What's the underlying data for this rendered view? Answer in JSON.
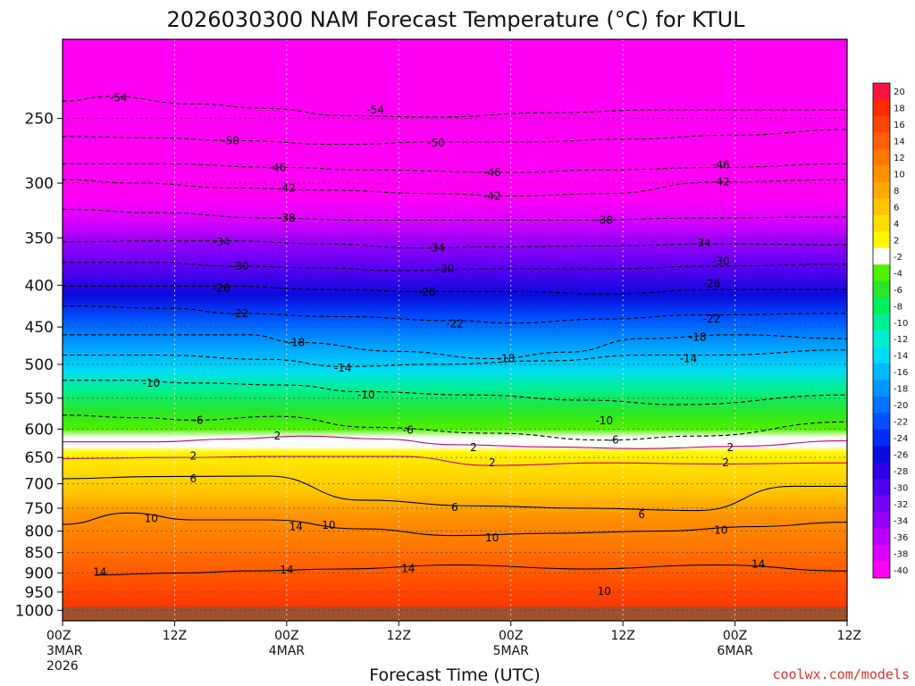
{
  "chart_data": {
    "type": "heatmap",
    "title": "2026030300 NAM Forecast Temperature (°C) for KTUL",
    "xlabel": "Forecast Time (UTC)",
    "ylabel": "",
    "y_scale": "pressure (inverted, logarithmic)",
    "x_ticks": [
      {
        "hour": 0,
        "lines": [
          "00Z",
          "3MAR",
          "2026"
        ]
      },
      {
        "hour": 12,
        "lines": [
          "12Z"
        ]
      },
      {
        "hour": 24,
        "lines": [
          "00Z",
          "4MAR"
        ]
      },
      {
        "hour": 36,
        "lines": [
          "12Z"
        ]
      },
      {
        "hour": 48,
        "lines": [
          "00Z",
          "5MAR"
        ]
      },
      {
        "hour": 60,
        "lines": [
          "12Z"
        ]
      },
      {
        "hour": 72,
        "lines": [
          "00Z",
          "6MAR"
        ]
      },
      {
        "hour": 84,
        "lines": [
          "12Z"
        ]
      }
    ],
    "y_ticks": [
      "250",
      "300",
      "350",
      "400",
      "450",
      "500",
      "550",
      "600",
      "650",
      "700",
      "750",
      "800",
      "850",
      "900",
      "950",
      "1000"
    ],
    "y_tick_values": [
      250,
      300,
      350,
      400,
      450,
      500,
      550,
      600,
      650,
      700,
      750,
      800,
      850,
      900,
      950,
      1000
    ],
    "xlim": [
      0,
      84
    ],
    "ylim": [
      200,
      1030
    ],
    "grid": true,
    "ground_pressure": 990,
    "colorbar": {
      "placement": "right",
      "labels": [
        "20",
        "18",
        "16",
        "14",
        "12",
        "10",
        "8",
        "6",
        "4",
        "2",
        "-2",
        "-4",
        "-6",
        "-8",
        "-10",
        "-12",
        "-14",
        "-16",
        "-18",
        "-20",
        "-22",
        "-24",
        "-26",
        "-28",
        "-30",
        "-32",
        "-34",
        "-36",
        "-38",
        "-40"
      ],
      "colors": [
        "#ff1440",
        "#ff2a00",
        "#ff4600",
        "#ff5f00",
        "#ff7800",
        "#ff9200",
        "#ffaa00",
        "#ffc400",
        "#ffdd00",
        "#fff600",
        "#ffffff",
        "#50f000",
        "#28e628",
        "#00ef5a",
        "#00ef96",
        "#00efd2",
        "#00dcf5",
        "#00b9ff",
        "#0096ff",
        "#0073ff",
        "#0050ff",
        "#002df5",
        "#0a0adc",
        "#2d00e6",
        "#5000f0",
        "#7300f5",
        "#9600fa",
        "#b900ff",
        "#dc00ff",
        "#ff00f5"
      ]
    },
    "isotherms": [
      {
        "t": "14",
        "p": [
          [
            3.5,
            905
          ],
          [
            13,
            900
          ],
          [
            20,
            895
          ],
          [
            30,
            890
          ],
          [
            42,
            880
          ],
          [
            56,
            890
          ],
          [
            70,
            880
          ],
          [
            84,
            895
          ]
        ]
      },
      {
        "t": "10",
        "p": [
          [
            0,
            785
          ],
          [
            7,
            760
          ],
          [
            14,
            775
          ],
          [
            22,
            775
          ],
          [
            32,
            795
          ],
          [
            42,
            810
          ],
          [
            52,
            805
          ],
          [
            64,
            800
          ],
          [
            74,
            790
          ],
          [
            84,
            780
          ]
        ]
      },
      {
        "t": "6",
        "p": [
          [
            0,
            690
          ],
          [
            10,
            686
          ],
          [
            22,
            685
          ],
          [
            32,
            733
          ],
          [
            44,
            745
          ],
          [
            56,
            750
          ],
          [
            68,
            755
          ],
          [
            78,
            705
          ],
          [
            84,
            705
          ]
        ]
      },
      {
        "t": "2",
        "p": [
          [
            0,
            652
          ],
          [
            12,
            650
          ],
          [
            24,
            648
          ],
          [
            36,
            648
          ],
          [
            46,
            665
          ],
          [
            58,
            660
          ],
          [
            70,
            662
          ],
          [
            84,
            660
          ]
        ]
      },
      {
        "t": "2",
        "p": [
          [
            0,
            622
          ],
          [
            10,
            622
          ],
          [
            18,
            617
          ],
          [
            26,
            612
          ],
          [
            34,
            617
          ],
          [
            42,
            627
          ],
          [
            52,
            631
          ],
          [
            62,
            634
          ],
          [
            72,
            630
          ],
          [
            84,
            620
          ]
        ]
      },
      {
        "t": "-6",
        "p": [
          [
            0,
            577
          ],
          [
            8,
            581
          ],
          [
            14,
            585
          ],
          [
            23,
            579
          ],
          [
            33,
            597
          ],
          [
            46,
            607
          ],
          [
            58,
            619
          ],
          [
            68,
            612
          ],
          [
            84,
            588
          ]
        ]
      },
      {
        "t": "-10",
        "p": [
          [
            0,
            523
          ],
          [
            7,
            523
          ],
          [
            14,
            527
          ],
          [
            24,
            530
          ],
          [
            32,
            540
          ],
          [
            44,
            545
          ],
          [
            56,
            553
          ],
          [
            66,
            560
          ],
          [
            84,
            545
          ]
        ]
      },
      {
        "t": "-14",
        "p": [
          [
            0,
            487
          ],
          [
            10,
            487
          ],
          [
            22,
            493
          ],
          [
            30,
            503
          ],
          [
            40,
            500
          ],
          [
            52,
            495
          ],
          [
            62,
            487
          ],
          [
            70,
            487
          ],
          [
            84,
            480
          ]
        ]
      },
      {
        "t": "-18",
        "p": [
          [
            0,
            460
          ],
          [
            10,
            460
          ],
          [
            20,
            460
          ],
          [
            25,
            470
          ],
          [
            36,
            482
          ],
          [
            46,
            492
          ],
          [
            54,
            483
          ],
          [
            62,
            465
          ],
          [
            72,
            460
          ],
          [
            84,
            465
          ]
        ]
      },
      {
        "t": "-22",
        "p": [
          [
            0,
            424
          ],
          [
            12,
            427
          ],
          [
            18,
            433
          ],
          [
            30,
            437
          ],
          [
            42,
            442
          ],
          [
            48,
            445
          ],
          [
            58,
            440
          ],
          [
            68,
            435
          ],
          [
            84,
            433
          ]
        ]
      },
      {
        "t": "-26",
        "p": [
          [
            0,
            401
          ],
          [
            10,
            401
          ],
          [
            18,
            401
          ],
          [
            28,
            405
          ],
          [
            38,
            407
          ],
          [
            48,
            407
          ],
          [
            58,
            410
          ],
          [
            70,
            405
          ],
          [
            84,
            405
          ]
        ]
      },
      {
        "t": "-30",
        "p": [
          [
            0,
            375
          ],
          [
            10,
            375
          ],
          [
            18,
            379
          ],
          [
            28,
            381
          ],
          [
            36,
            384
          ],
          [
            46,
            382
          ],
          [
            58,
            382
          ],
          [
            70,
            379
          ],
          [
            84,
            377
          ]
        ]
      },
      {
        "t": "-34",
        "p": [
          [
            0,
            354
          ],
          [
            10,
            353
          ],
          [
            18,
            353
          ],
          [
            28,
            356
          ],
          [
            38,
            360
          ],
          [
            46,
            359
          ],
          [
            58,
            358
          ],
          [
            70,
            356
          ],
          [
            84,
            357
          ]
        ]
      },
      {
        "t": "-38",
        "p": [
          [
            0,
            323
          ],
          [
            10,
            326
          ],
          [
            22,
            331
          ],
          [
            32,
            333
          ],
          [
            44,
            333
          ],
          [
            56,
            333
          ],
          [
            68,
            331
          ],
          [
            84,
            330
          ]
        ]
      },
      {
        "t": "-42",
        "p": [
          [
            0,
            297
          ],
          [
            8,
            300
          ],
          [
            18,
            304
          ],
          [
            28,
            306
          ],
          [
            40,
            309
          ],
          [
            48,
            311
          ],
          [
            58,
            309
          ],
          [
            70,
            299
          ],
          [
            84,
            297
          ]
        ]
      },
      {
        "t": "-46",
        "p": [
          [
            0,
            284
          ],
          [
            10,
            284
          ],
          [
            24,
            287
          ],
          [
            32,
            289
          ],
          [
            48,
            291
          ],
          [
            58,
            289
          ],
          [
            70,
            287
          ],
          [
            84,
            284
          ]
        ]
      },
      {
        "t": "-50",
        "p": [
          [
            0,
            263
          ],
          [
            10,
            264
          ],
          [
            18,
            266
          ],
          [
            30,
            269
          ],
          [
            40,
            267
          ],
          [
            50,
            267
          ],
          [
            60,
            265
          ],
          [
            72,
            262
          ],
          [
            84,
            258
          ]
        ]
      },
      {
        "t": "-54",
        "p": [
          [
            0,
            238
          ],
          [
            5,
            235
          ],
          [
            14,
            240
          ],
          [
            22,
            243
          ],
          [
            30,
            248
          ],
          [
            40,
            249
          ],
          [
            52,
            246
          ],
          [
            64,
            244
          ],
          [
            84,
            244
          ]
        ]
      }
    ],
    "contour_labels": [
      {
        "t": "14",
        "h": 4,
        "p": 898
      },
      {
        "t": "14",
        "h": 25,
        "p": 790
      },
      {
        "t": "14",
        "h": 24,
        "p": 892
      },
      {
        "t": "14",
        "h": 37,
        "p": 889
      },
      {
        "t": "14",
        "h": 74.5,
        "p": 878
      },
      {
        "t": "10",
        "h": 9.5,
        "p": 772
      },
      {
        "t": "10",
        "h": 28.5,
        "p": 787
      },
      {
        "t": "10",
        "h": 46,
        "p": 815
      },
      {
        "t": "10",
        "h": 58,
        "p": 948
      },
      {
        "t": "10",
        "h": 70.5,
        "p": 798
      },
      {
        "t": "6",
        "h": 14,
        "p": 690
      },
      {
        "t": "6",
        "h": 42,
        "p": 748
      },
      {
        "t": "6",
        "h": 62,
        "p": 763
      },
      {
        "t": "2",
        "h": 14,
        "p": 647
      },
      {
        "t": "2",
        "h": 23,
        "p": 612
      },
      {
        "t": "2",
        "h": 44,
        "p": 632
      },
      {
        "t": "2",
        "h": 46,
        "p": 660
      },
      {
        "t": "2",
        "h": 71.5,
        "p": 632
      },
      {
        "t": "2",
        "h": 71,
        "p": 660
      },
      {
        "t": "-6",
        "h": 14.5,
        "p": 585
      },
      {
        "t": "-6",
        "h": 37,
        "p": 602
      },
      {
        "t": "-6",
        "h": 59,
        "p": 619
      },
      {
        "t": "-10",
        "h": 9.5,
        "p": 527
      },
      {
        "t": "-10",
        "h": 32.5,
        "p": 545
      },
      {
        "t": "-10",
        "h": 58,
        "p": 586
      },
      {
        "t": "-14",
        "h": 30,
        "p": 505
      },
      {
        "t": "-14",
        "h": 67,
        "p": 492
      },
      {
        "t": "-18",
        "h": 25,
        "p": 470
      },
      {
        "t": "-18",
        "h": 47.5,
        "p": 492
      },
      {
        "t": "-18",
        "h": 68,
        "p": 463
      },
      {
        "t": "-22",
        "h": 19,
        "p": 433
      },
      {
        "t": "-22",
        "h": 42,
        "p": 446
      },
      {
        "t": "-22",
        "h": 69.5,
        "p": 440
      },
      {
        "t": "-26",
        "h": 17,
        "p": 403
      },
      {
        "t": "-26",
        "h": 39,
        "p": 408
      },
      {
        "t": "-26",
        "h": 69.5,
        "p": 398
      },
      {
        "t": "-30",
        "h": 19,
        "p": 379
      },
      {
        "t": "-30",
        "h": 41,
        "p": 382
      },
      {
        "t": "-30",
        "h": 70.5,
        "p": 374
      },
      {
        "t": "-34",
        "h": 17,
        "p": 354
      },
      {
        "t": "-34",
        "h": 40,
        "p": 360
      },
      {
        "t": "-34",
        "h": 68.5,
        "p": 355
      },
      {
        "t": "-38",
        "h": 24,
        "p": 331
      },
      {
        "t": "-38",
        "h": 58,
        "p": 333
      },
      {
        "t": "-42",
        "h": 24,
        "p": 304
      },
      {
        "t": "-42",
        "h": 46,
        "p": 311
      },
      {
        "t": "-42",
        "h": 70.5,
        "p": 299
      },
      {
        "t": "-46",
        "h": 23,
        "p": 287
      },
      {
        "t": "-46",
        "h": 46,
        "p": 291
      },
      {
        "t": "-46",
        "h": 70.5,
        "p": 285
      },
      {
        "t": "-50",
        "h": 18,
        "p": 266
      },
      {
        "t": "-50",
        "h": 40,
        "p": 268
      },
      {
        "t": "-54",
        "h": 6,
        "p": 236
      },
      {
        "t": "-54",
        "h": 33.5,
        "p": 244
      }
    ]
  },
  "credit": "coolwx.com/models"
}
